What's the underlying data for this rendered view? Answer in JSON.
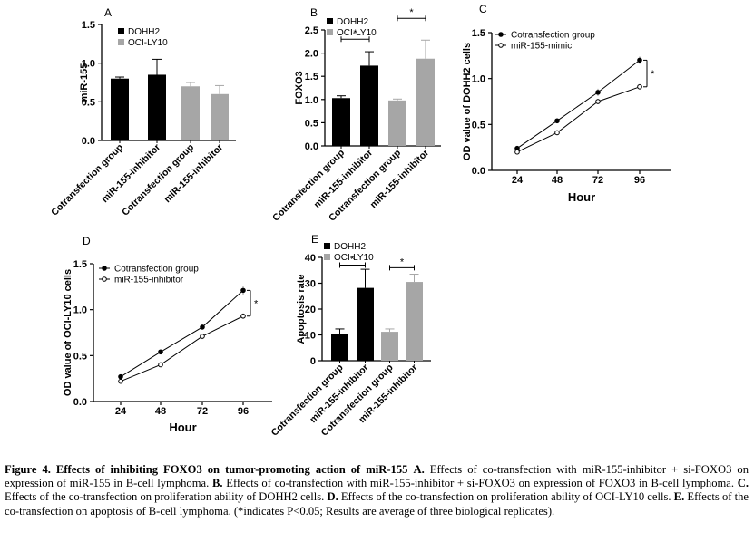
{
  "figure": {
    "panels": {
      "A": "A",
      "B": "B",
      "C": "C",
      "D": "D",
      "E": "E"
    }
  },
  "chart_data": [
    {
      "panel": "A",
      "type": "bar",
      "ylabel": "miR-155",
      "ylim": [
        0,
        1.5
      ],
      "yticks": [
        "0.0",
        "0.5",
        "1.0",
        "1.5"
      ],
      "categories": [
        "Cotransfection group",
        "miR-155-inhibitor",
        "Cotransfection group",
        "miR-155-inhibitor"
      ],
      "values": [
        0.8,
        0.85,
        0.7,
        0.6
      ],
      "errors": [
        0.02,
        0.2,
        0.05,
        0.11
      ],
      "bar_groups": [
        0,
        0,
        1,
        1
      ],
      "legend": [
        {
          "name": "DOHH2",
          "color": "#000000"
        },
        {
          "name": "OCI-LY10",
          "color": "#a6a6a6"
        }
      ],
      "legend_position": "top-left",
      "significance": []
    },
    {
      "panel": "B",
      "type": "bar",
      "ylabel": "FOXO3",
      "ylim": [
        0,
        2.5
      ],
      "yticks": [
        "0.0",
        "0.5",
        "1.0",
        "1.5",
        "2.0",
        "2.5"
      ],
      "categories": [
        "Cotransfection group",
        "miR-155-inhibitor",
        "Cotransfection group",
        "miR-155-inhibitor"
      ],
      "values": [
        1.03,
        1.73,
        0.98,
        1.88
      ],
      "errors": [
        0.05,
        0.3,
        0.03,
        0.4
      ],
      "bar_groups": [
        0,
        0,
        1,
        1
      ],
      "legend": [
        {
          "name": "DOHH2",
          "color": "#000000"
        },
        {
          "name": "OCI-LY10",
          "color": "#a6a6a6"
        }
      ],
      "legend_position": "top-left",
      "significance": [
        {
          "from": 0,
          "to": 1,
          "label": "*",
          "y": 2.3
        },
        {
          "from": 2,
          "to": 3,
          "label": "*",
          "y": 2.75
        }
      ]
    },
    {
      "panel": "C",
      "type": "line",
      "xlabel": "Hour",
      "ylabel": "OD value of DOHH2 cells",
      "x": [
        24,
        48,
        72,
        96
      ],
      "ylim": [
        0,
        1.5
      ],
      "yticks": [
        "0.0",
        "0.5",
        "1.0",
        "1.5"
      ],
      "series": [
        {
          "name": "Cotransfection group",
          "values": [
            0.24,
            0.54,
            0.85,
            1.2
          ],
          "errors": [
            0.02,
            0.02,
            0.04,
            0.04
          ],
          "marker": "filled"
        },
        {
          "name": "miR-155-mimic",
          "values": [
            0.2,
            0.41,
            0.75,
            0.91
          ],
          "errors": [
            0.02,
            0.02,
            0.03,
            0.03
          ],
          "marker": "open"
        }
      ],
      "legend_position": "top-left",
      "significance": [
        {
          "x": 96,
          "label": "*"
        }
      ]
    },
    {
      "panel": "D",
      "type": "line",
      "xlabel": "Hour",
      "ylabel": "OD value of OCI-LY10 cells",
      "x": [
        24,
        48,
        72,
        96
      ],
      "ylim": [
        0,
        1.5
      ],
      "yticks": [
        "0.0",
        "0.5",
        "1.0",
        "1.5"
      ],
      "series": [
        {
          "name": "Cotransfection group",
          "values": [
            0.27,
            0.54,
            0.81,
            1.21
          ],
          "errors": [
            0.02,
            0.02,
            0.02,
            0.05
          ],
          "marker": "filled"
        },
        {
          "name": "miR-155-inhibitor",
          "values": [
            0.22,
            0.4,
            0.71,
            0.93
          ],
          "errors": [
            0.02,
            0.02,
            0.03,
            0.03
          ],
          "marker": "open"
        }
      ],
      "legend_position": "top-left",
      "significance": [
        {
          "x": 96,
          "label": "*"
        }
      ]
    },
    {
      "panel": "E",
      "type": "bar",
      "ylabel": "Apoptosis rate",
      "ylim": [
        0,
        40
      ],
      "yticks": [
        "0",
        "10",
        "20",
        "30",
        "40"
      ],
      "categories": [
        "Cotransfection group",
        "miR-155-inhibitor",
        "Cotransfection group",
        "miR-155-inhibitor"
      ],
      "values": [
        10.5,
        28.2,
        11.2,
        30.5
      ],
      "errors": [
        1.8,
        7.2,
        1.1,
        3.0
      ],
      "bar_groups": [
        0,
        0,
        1,
        1
      ],
      "legend": [
        {
          "name": "DOHH2",
          "color": "#000000"
        },
        {
          "name": "OCI-LY10",
          "color": "#a6a6a6"
        }
      ],
      "legend_position": "top-left",
      "significance": [
        {
          "from": 0,
          "to": 1,
          "label": "*",
          "y": 37
        },
        {
          "from": 2,
          "to": 3,
          "label": "*",
          "y": 36
        }
      ]
    }
  ],
  "caption": {
    "title": "Figure 4. Effects of inhibiting FOXO3 on tumor-promoting action of miR-155",
    "parts": [
      {
        "label": "A.",
        "text": "Effects of co-transfection with miR-155-inhibitor + si-FOXO3 on expression of miR-155 in B-cell lymphoma."
      },
      {
        "label": "B.",
        "text": "Effects of co-transfection with miR-155-inhibitor + si-FOXO3 on expression of FOXO3 in B-cell lymphoma."
      },
      {
        "label": "C.",
        "text": "Effects of the co-transfection on proliferation ability of DOHH2 cells."
      },
      {
        "label": "D.",
        "text": "Effects of the co-transfection on proliferation ability of OCI-LY10 cells."
      },
      {
        "label": "E.",
        "text": "Effects of the co-transfection on apoptosis of B-cell lymphoma. (*indicates P<0.05; Results are average of three biological replicates)."
      }
    ]
  }
}
